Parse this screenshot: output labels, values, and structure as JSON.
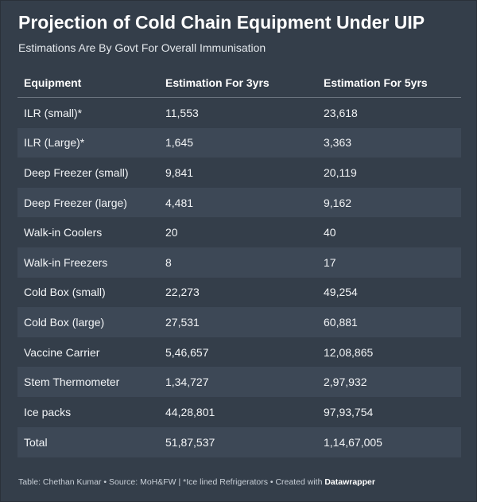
{
  "title": "Projection of Cold Chain Equipment Under UIP",
  "subtitle": "Estimations Are By Govt For Overall Immunisation",
  "chart_data": {
    "type": "table",
    "columns": [
      "Equipment",
      "Estimation For 3yrs",
      "Estimation For 5yrs"
    ],
    "rows": [
      [
        "ILR (small)*",
        "11,553",
        "23,618"
      ],
      [
        "ILR (Large)*",
        "1,645",
        "3,363"
      ],
      [
        "Deep Freezer (small)",
        "9,841",
        "20,119"
      ],
      [
        "Deep Freezer (large)",
        "4,481",
        "9,162"
      ],
      [
        "Walk-in Coolers",
        "20",
        "40"
      ],
      [
        "Walk-in Freezers",
        "8",
        "17"
      ],
      [
        "Cold Box (small)",
        "22,273",
        "49,254"
      ],
      [
        "Cold Box (large)",
        "27,531",
        "60,881"
      ],
      [
        "Vaccine Carrier",
        "5,46,657",
        "12,08,865"
      ],
      [
        "Stem Thermometer",
        "1,34,727",
        "2,97,932"
      ],
      [
        "Ice packs",
        "44,28,801",
        "97,93,754"
      ],
      [
        "Total",
        "51,87,537",
        "1,14,67,005"
      ]
    ]
  },
  "footer": {
    "text": "Table: Chethan Kumar • Source: MoH&FW | *Ice lined Refrigerators • Created with ",
    "brand": "Datawrapper"
  },
  "colors": {
    "background": "#343e4a",
    "stripe": "#3d4856",
    "text": "#ffffff"
  }
}
